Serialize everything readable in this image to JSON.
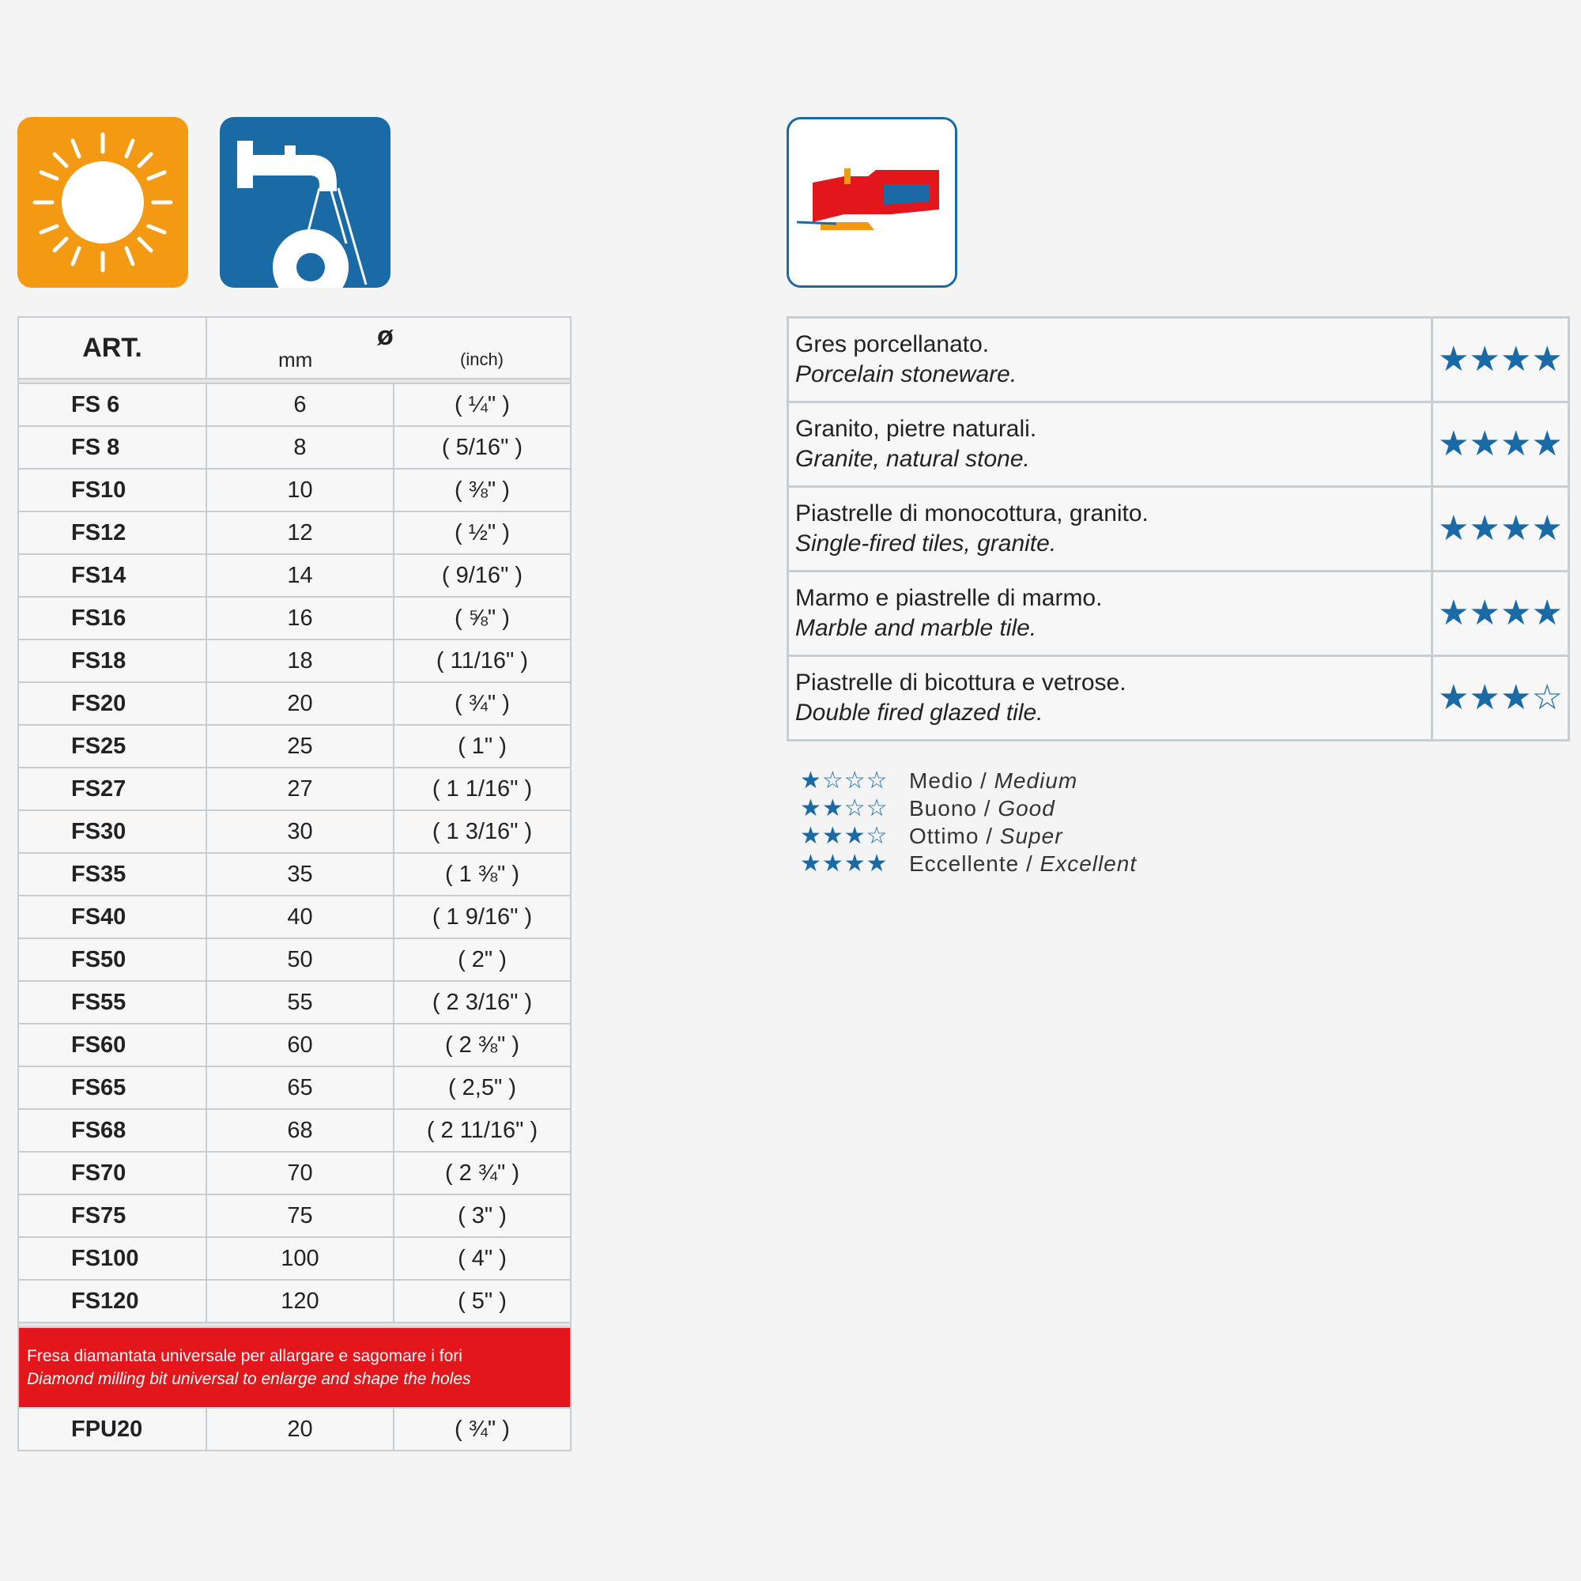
{
  "left_table": {
    "header": {
      "art": "ART.",
      "diameter_symbol": "ø",
      "mm": "mm",
      "inch": "(inch)"
    },
    "rows": [
      {
        "art": "FS  6",
        "mm": "6",
        "inch": "(  ¼\"  )"
      },
      {
        "art": "FS  8",
        "mm": "8",
        "inch": "(  5/16\"  )"
      },
      {
        "art": "FS10",
        "mm": "10",
        "inch": "(  ⅜\"  )"
      },
      {
        "art": "FS12",
        "mm": "12",
        "inch": "(  ½\"  )"
      },
      {
        "art": "FS14",
        "mm": "14",
        "inch": "(  9/16\"  )"
      },
      {
        "art": "FS16",
        "mm": "16",
        "inch": "(  ⅝\"  )"
      },
      {
        "art": "FS18",
        "mm": "18",
        "inch": "(  11/16\"  )"
      },
      {
        "art": "FS20",
        "mm": "20",
        "inch": "(  ¾\"  )"
      },
      {
        "art": "FS25",
        "mm": "25",
        "inch": "(  1\"  )"
      },
      {
        "art": "FS27",
        "mm": "27",
        "inch": "( 1 1/16\" )"
      },
      {
        "art": "FS30",
        "mm": "30",
        "inch": "( 1 3/16\" )"
      },
      {
        "art": "FS35",
        "mm": "35",
        "inch": "( 1 ⅜\" )"
      },
      {
        "art": "FS40",
        "mm": "40",
        "inch": "( 1 9/16\" )"
      },
      {
        "art": "FS50",
        "mm": "50",
        "inch": "(  2\"  )"
      },
      {
        "art": "FS55",
        "mm": "55",
        "inch": "( 2 3/16\" )"
      },
      {
        "art": "FS60",
        "mm": "60",
        "inch": "( 2 ⅜\" )"
      },
      {
        "art": "FS65",
        "mm": "65",
        "inch": "(  2,5\"  )"
      },
      {
        "art": "FS68",
        "mm": "68",
        "inch": "( 2 11/16\" )"
      },
      {
        "art": "FS70",
        "mm": "70",
        "inch": "( 2 ¾\" )"
      },
      {
        "art": "FS75",
        "mm": "75",
        "inch": "(  3\"  )"
      },
      {
        "art": "FS100",
        "mm": "100",
        "inch": "(  4\"  )"
      },
      {
        "art": "FS120",
        "mm": "120",
        "inch": "(  5\"  )"
      }
    ],
    "banner": {
      "it": "Fresa diamantata universale per allargare e sagomare i fori",
      "en": "Diamond milling bit universal to enlarge and shape the holes",
      "color": "#e3161b"
    },
    "extra_row": {
      "art": "FPU20",
      "mm": "20",
      "inch": "(  ¾\"  )"
    }
  },
  "materials": [
    {
      "it": "Gres porcellanato.",
      "en": "Porcelain stoneware.",
      "rating": 4
    },
    {
      "it": "Granito, pietre naturali.",
      "en": "Granite, natural stone.",
      "rating": 4
    },
    {
      "it": "Piastrelle di monocottura, granito.",
      "en": "Single-fired tiles, granite.",
      "rating": 4
    },
    {
      "it": "Marmo e piastrelle di marmo.",
      "en": "Marble and marble tile.",
      "rating": 4
    },
    {
      "it": "Piastrelle di bicottura e vetrose.",
      "en": "Double fired glazed tile.",
      "rating": 3
    }
  ],
  "legend": [
    {
      "stars": "★☆☆☆",
      "it": "Medio",
      "en": "Medium"
    },
    {
      "stars": "★★☆☆",
      "it": "Buono",
      "en": "Good"
    },
    {
      "stars": "★★★☆",
      "it": "Ottimo",
      "en": "Super"
    },
    {
      "stars": "★★★★",
      "it": "Eccellente",
      "en": "Excellent"
    }
  ],
  "icons": [
    "sun-icon",
    "water-tap-icon",
    "angle-grinder-icon"
  ],
  "colors": {
    "star": "#1a6aa6",
    "sun_bg": "#f39a12",
    "tap_bg": "#1a6aa6"
  }
}
